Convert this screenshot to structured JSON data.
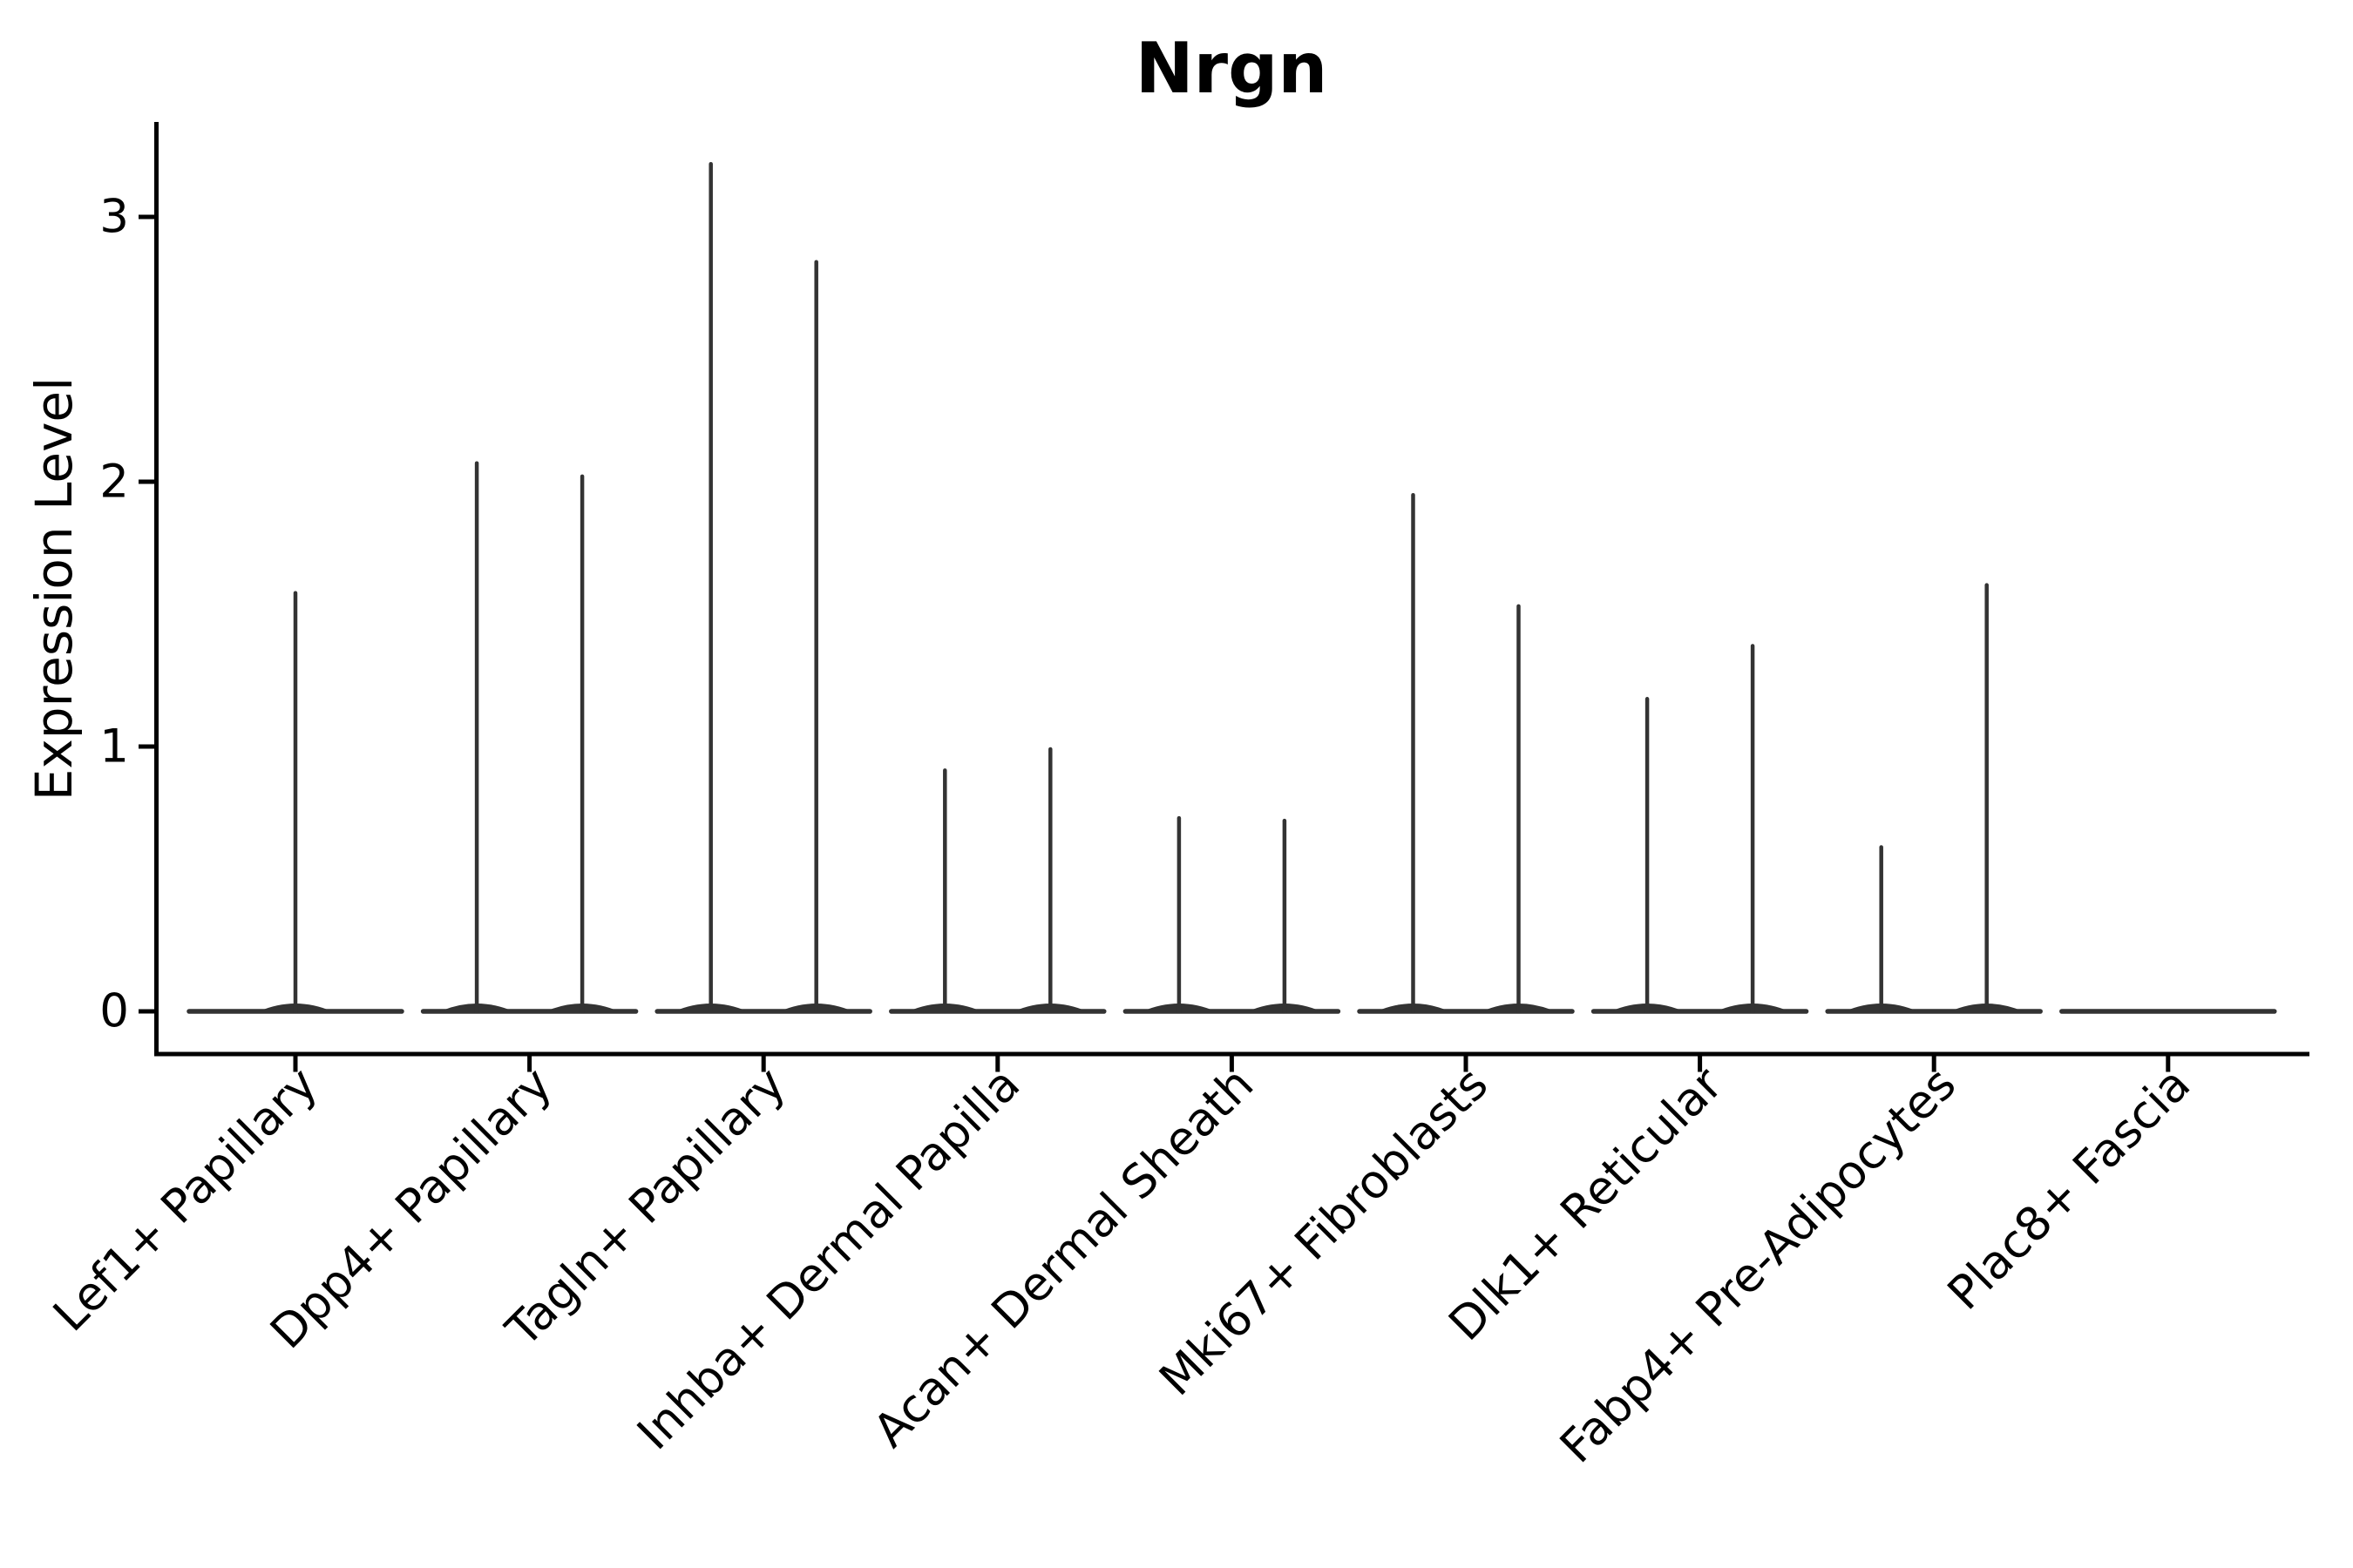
{
  "title": "Nrgn",
  "y_axis": {
    "label": "Expression Level",
    "ticks": [
      "0",
      "1",
      "2",
      "3"
    ]
  },
  "chart_data": {
    "type": "violin",
    "title": "Nrgn",
    "xlabel": "",
    "ylabel": "Expression Level",
    "ytick_values": [
      0,
      1,
      2,
      3
    ],
    "ylim": [
      0,
      3.35
    ],
    "grid": false,
    "legend": "none",
    "categories": [
      "Lef1+ Papillary",
      "Dpp4+ Papillary",
      "Tagln+ Papillary",
      "Inhba+ Dermal Papilla",
      "Acan+ Dermal Sheath",
      "Mki67+ Fibroblasts",
      "Dlk1+ Reticular",
      "Fabp4+ Pre-Adipocytes",
      "Plac8+ Fascia"
    ],
    "description": "Violin plot of Nrgn expression; each cluster shows flat zero-density bodies with thin spikes up to the max expression value. Most categories contain two dodged violins (left/right); Lef1+ Papillary has a single centered violin; Plac8+ Fascia is flat at zero.",
    "violins": [
      {
        "category": "Lef1+ Papillary",
        "baseline_value": 0,
        "spikes": [
          {
            "pos": "center",
            "max": 1.58
          }
        ]
      },
      {
        "category": "Dpp4+ Papillary",
        "baseline_value": 0,
        "spikes": [
          {
            "pos": "left",
            "max": 2.07
          },
          {
            "pos": "right",
            "max": 2.02
          }
        ]
      },
      {
        "category": "Tagln+ Papillary",
        "baseline_value": 0,
        "spikes": [
          {
            "pos": "left",
            "max": 3.2
          },
          {
            "pos": "right",
            "max": 2.83
          }
        ]
      },
      {
        "category": "Inhba+ Dermal Papilla",
        "baseline_value": 0,
        "spikes": [
          {
            "pos": "left",
            "max": 0.91
          },
          {
            "pos": "right",
            "max": 0.99
          }
        ]
      },
      {
        "category": "Acan+ Dermal Sheath",
        "baseline_value": 0,
        "spikes": [
          {
            "pos": "left",
            "max": 0.73
          },
          {
            "pos": "right",
            "max": 0.72
          }
        ]
      },
      {
        "category": "Mki67+ Fibroblasts",
        "baseline_value": 0,
        "spikes": [
          {
            "pos": "left",
            "max": 1.95
          },
          {
            "pos": "right",
            "max": 1.53
          }
        ]
      },
      {
        "category": "Dlk1+ Reticular",
        "baseline_value": 0,
        "spikes": [
          {
            "pos": "left",
            "max": 1.18
          },
          {
            "pos": "right",
            "max": 1.38
          }
        ]
      },
      {
        "category": "Fabp4+ Pre-Adipocytes",
        "baseline_value": 0,
        "spikes": [
          {
            "pos": "left",
            "max": 0.62
          },
          {
            "pos": "right",
            "max": 1.61
          }
        ]
      },
      {
        "category": "Plac8+ Fascia",
        "baseline_value": 0,
        "spikes": []
      }
    ],
    "colors": {
      "violin_line": "#333333",
      "axis": "#000000",
      "background": "#ffffff"
    }
  }
}
